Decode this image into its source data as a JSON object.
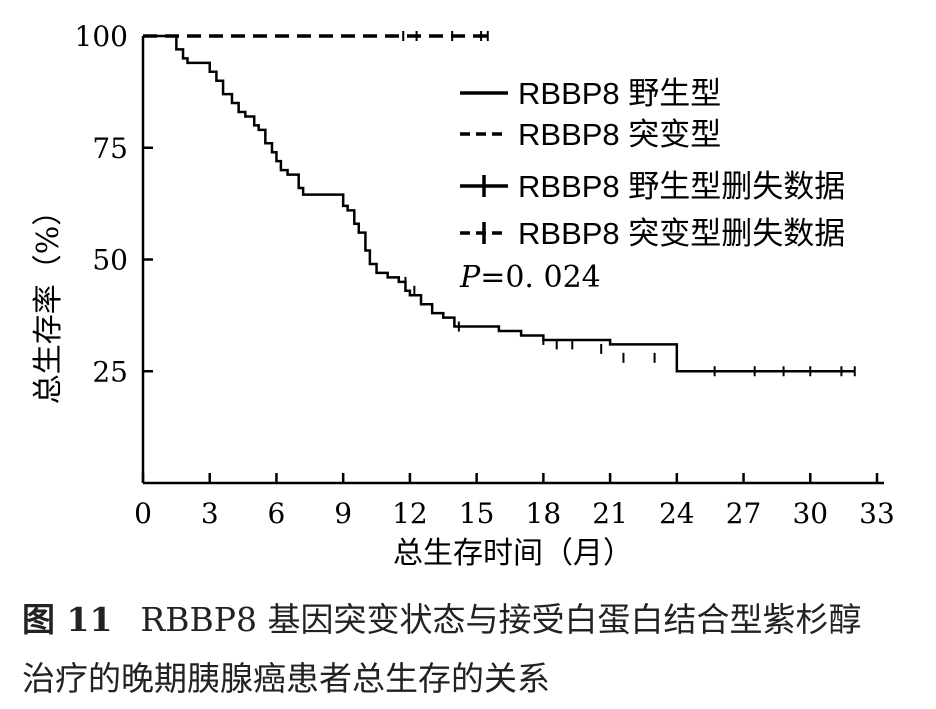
{
  "chart_data": {
    "type": "line",
    "xlabel": "总生存时间（月）",
    "ylabel": "总生存率（%）",
    "xlim": [
      0,
      33
    ],
    "ylim": [
      0,
      100
    ],
    "x_ticks": [
      "0",
      "3",
      "6",
      "9",
      "12",
      "15",
      "18",
      "21",
      "24",
      "27",
      "30",
      "33"
    ],
    "y_ticks": [
      "25",
      "50",
      "75",
      "100"
    ],
    "legend_position": "top-right",
    "annotation": {
      "p_label": "P",
      "p_value": "=0. 024"
    },
    "series": [
      {
        "name": "RBBP8 野生型",
        "style": "solid",
        "x": [
          0,
          1.2,
          1.5,
          1.8,
          2,
          3,
          3.3,
          3.6,
          4,
          4.3,
          4.6,
          5,
          5.2,
          5.5,
          5.8,
          6,
          6.2,
          6.5,
          7,
          7.2,
          9,
          9.2,
          9.5,
          9.7,
          10,
          10.2,
          10.5,
          11,
          11.5,
          11.8,
          12,
          12.5,
          13,
          13.5,
          14,
          16,
          17,
          18,
          21,
          24,
          32
        ],
        "y": [
          100,
          100,
          97,
          95,
          94,
          92,
          90,
          87,
          85,
          83,
          82,
          80,
          79,
          76,
          74,
          72,
          70,
          69,
          66,
          64.5,
          62,
          61,
          58,
          56,
          52,
          49,
          47,
          46,
          45,
          43,
          42,
          40,
          38,
          37,
          35,
          34,
          33,
          32,
          31,
          25,
          25
        ]
      },
      {
        "name": "RBBP8 突变型",
        "style": "dashed",
        "x": [
          0,
          15.5
        ],
        "y": [
          100,
          100
        ]
      },
      {
        "name": "RBBP8 野生型删失数据",
        "style": "solid-plus",
        "x": [
          11.8,
          12.2,
          14.2,
          18,
          18.6,
          19.3,
          20.6,
          21.6,
          23,
          25.7,
          27.5,
          28.8,
          30,
          31.4,
          32
        ],
        "y": [
          45,
          43,
          35,
          32,
          31,
          31,
          30,
          28,
          28,
          25,
          25,
          25,
          25,
          25,
          25
        ]
      },
      {
        "name": "RBBP8 突变型删失数据",
        "style": "dashed-plus",
        "x": [
          11.7,
          12.3,
          13.9,
          15.2,
          15.5
        ],
        "y": [
          100,
          100,
          100,
          100,
          100
        ]
      }
    ]
  },
  "caption": {
    "label": "图 11",
    "line1": "RBBP8 基因突变状态与接受白蛋白结合型紫杉醇",
    "line2": "治疗的晚期胰腺癌患者总生存的关系"
  }
}
